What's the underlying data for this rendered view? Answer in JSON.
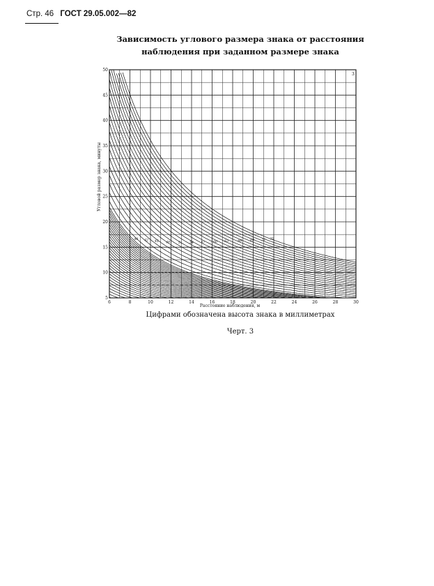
{
  "header": {
    "page": "Стр. 46",
    "standard": "ГОСТ 29.05.002—82"
  },
  "title": {
    "line1": "Зависимость углового размера знака от расстояния",
    "line2": "наблюдения при заданном размере знака"
  },
  "caption": "Цифрами обозначена высота знака в миллиметрах",
  "figure_label": "Черт. 3",
  "chart_data": {
    "type": "line",
    "xlabel": "Расстояние наблюдения, м",
    "ylabel": "Угловой размер знака, минуты",
    "xlim": [
      6,
      30
    ],
    "ylim": [
      5,
      50
    ],
    "x_ticks": [
      6,
      8,
      10,
      12,
      14,
      16,
      18,
      20,
      22,
      24,
      26,
      28,
      30
    ],
    "y_ticks": [
      5,
      10,
      15,
      20,
      25,
      30,
      35,
      40,
      45,
      50
    ],
    "grid": true,
    "corner_label": "3",
    "labeled_curves": [
      {
        "label": "40",
        "x": 8.6,
        "y": 16.4
      },
      {
        "label": "42",
        "x": 9.6,
        "y": 16.2
      },
      {
        "label": "45",
        "x": 10.6,
        "y": 16.0
      },
      {
        "label": "48",
        "x": 11.7,
        "y": 15.8
      },
      {
        "label": "51",
        "x": 12.9,
        "y": 15.7
      },
      {
        "label": "54",
        "x": 14.0,
        "y": 15.7
      },
      {
        "label": "57",
        "x": 15.1,
        "y": 15.8
      },
      {
        "label": "60",
        "x": 16.3,
        "y": 15.9
      },
      {
        "label": "63",
        "x": 17.4,
        "y": 16.0
      },
      {
        "label": "66",
        "x": 18.7,
        "y": 16.1
      },
      {
        "label": "69",
        "x": 19.9,
        "y": 16.2
      },
      {
        "label": "72",
        "x": 21.0,
        "y": 16.3
      },
      {
        "label": "75",
        "x": 21.8,
        "y": 16.4
      }
    ],
    "curve_heights_mm": [
      2,
      3,
      4,
      5,
      6,
      7,
      8,
      9,
      10,
      11,
      12,
      13,
      14,
      15,
      16,
      17,
      18,
      19,
      20,
      21,
      22,
      23,
      24,
      25,
      26,
      27,
      28,
      29,
      30,
      31,
      32,
      33,
      34,
      35,
      36,
      37,
      38,
      39,
      40,
      42,
      45,
      48,
      51,
      54,
      57,
      60,
      63,
      66,
      69,
      72,
      75,
      78,
      81,
      84,
      87,
      90,
      93,
      96,
      99,
      102,
      105
    ]
  }
}
